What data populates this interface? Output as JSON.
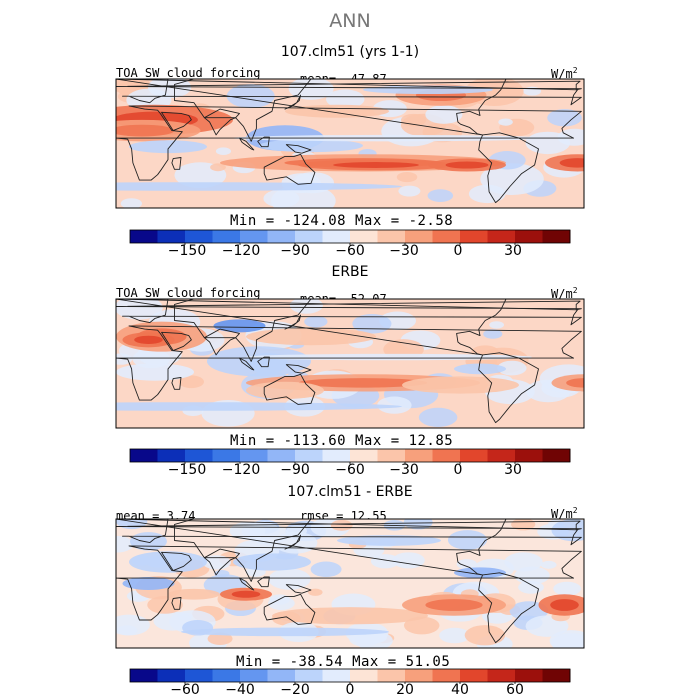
{
  "season": "ANN",
  "colors": {
    "palette": [
      "#08088a",
      "#0c2fb8",
      "#1e56d6",
      "#3b78e6",
      "#6496f0",
      "#92b6f7",
      "#bcd4fb",
      "#e2ecfd",
      "#fde4d6",
      "#fbc5aa",
      "#f7a07c",
      "#f07451",
      "#e2462c",
      "#c5261a",
      "#9c100c",
      "#700404"
    ],
    "ocean_pos": "#fcd7c6",
    "ocean_neg": "#d7e5fb"
  },
  "chart_data": [
    {
      "type": "heatmap",
      "title": "107.clm51 (yrs 1-1)",
      "left_label": "TOA SW cloud forcing",
      "center_label": "mean= -47.87",
      "units_base": "W/m",
      "units_exp": "2",
      "minmax": "Min = -124.08 Max =  -2.58",
      "min": -124.08,
      "max": -2.58,
      "mean": -47.87,
      "colorbar_range": [
        -180,
        60
      ],
      "colorbar_ticks": [
        -150,
        -120,
        -90,
        -60,
        -30,
        0,
        30
      ],
      "colorbar_tick_labels": [
        "−150",
        "−120",
        "−90",
        "−60",
        "−30",
        "0",
        "30"
      ]
    },
    {
      "type": "heatmap",
      "title": "ERBE",
      "left_label": "TOA SW cloud forcing",
      "center_label": "mean= -52.07",
      "units_base": "W/m",
      "units_exp": "2",
      "minmax": "Min = -113.60 Max =  12.85",
      "min": -113.6,
      "max": 12.85,
      "mean": -52.07,
      "colorbar_range": [
        -180,
        60
      ],
      "colorbar_ticks": [
        -150,
        -120,
        -90,
        -60,
        -30,
        0,
        30
      ],
      "colorbar_tick_labels": [
        "−150",
        "−120",
        "−90",
        "−60",
        "−30",
        "0",
        "30"
      ]
    },
    {
      "type": "heatmap",
      "title": "107.clm51 - ERBE",
      "left_label": "mean =   3.74",
      "center_label": "rmse =  12.55",
      "units_base": "W/m",
      "units_exp": "2",
      "minmax": "Min = -38.54 Max =  51.05",
      "min": -38.54,
      "max": 51.05,
      "mean": 3.74,
      "rmse": 12.55,
      "colorbar_range": [
        -80,
        80
      ],
      "colorbar_ticks": [
        -60,
        -40,
        -20,
        0,
        20,
        40,
        60
      ],
      "colorbar_tick_labels": [
        "−60",
        "−40",
        "−20",
        "0",
        "20",
        "40",
        "60"
      ]
    }
  ]
}
